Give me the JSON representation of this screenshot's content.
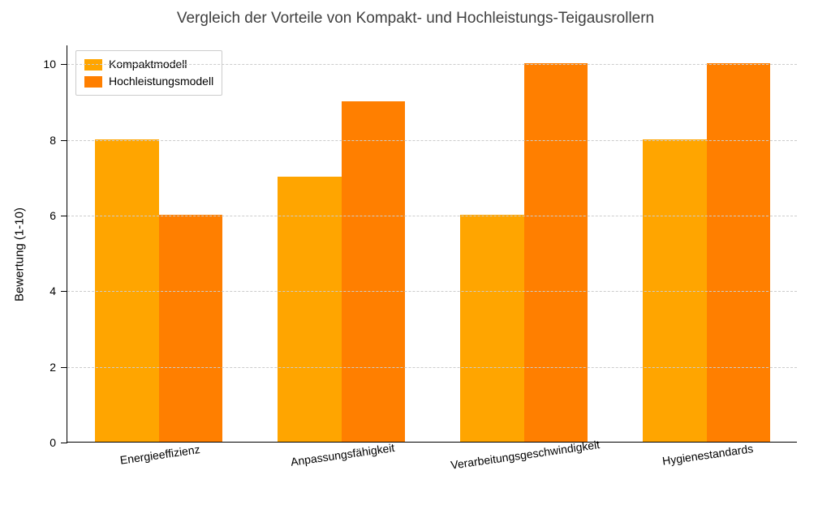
{
  "chart": {
    "type": "bar",
    "title": "Vergleich der Vorteile von Kompakt- und Hochleistungs-Teigausrollern",
    "title_fontsize": 19,
    "title_color": "#404040",
    "background_color": "#ffffff",
    "y_axis": {
      "label": "Bewertung (1-10)",
      "label_fontsize": 15,
      "min": 0,
      "max": 10.5,
      "ticks": [
        0,
        2,
        4,
        6,
        8,
        10
      ],
      "grid_color": "#cccccc",
      "grid_dash": true
    },
    "categories": [
      "Energieeffizienz",
      "Anpassungsfähigkeit",
      "Verarbeitungsgeschwindigkeit",
      "Hygienestandards"
    ],
    "x_tick_rotation_deg": 8,
    "series": [
      {
        "name": "Kompaktmodell",
        "color": "#ffa500",
        "values": [
          8,
          7,
          6,
          8
        ]
      },
      {
        "name": "Hochleistungsmodell",
        "color": "#ff7f00",
        "values": [
          6,
          9,
          10,
          10
        ]
      }
    ],
    "bar_width": 0.35,
    "legend": {
      "position": "upper-left",
      "border_color": "#cccccc",
      "background": "#ffffff"
    }
  }
}
